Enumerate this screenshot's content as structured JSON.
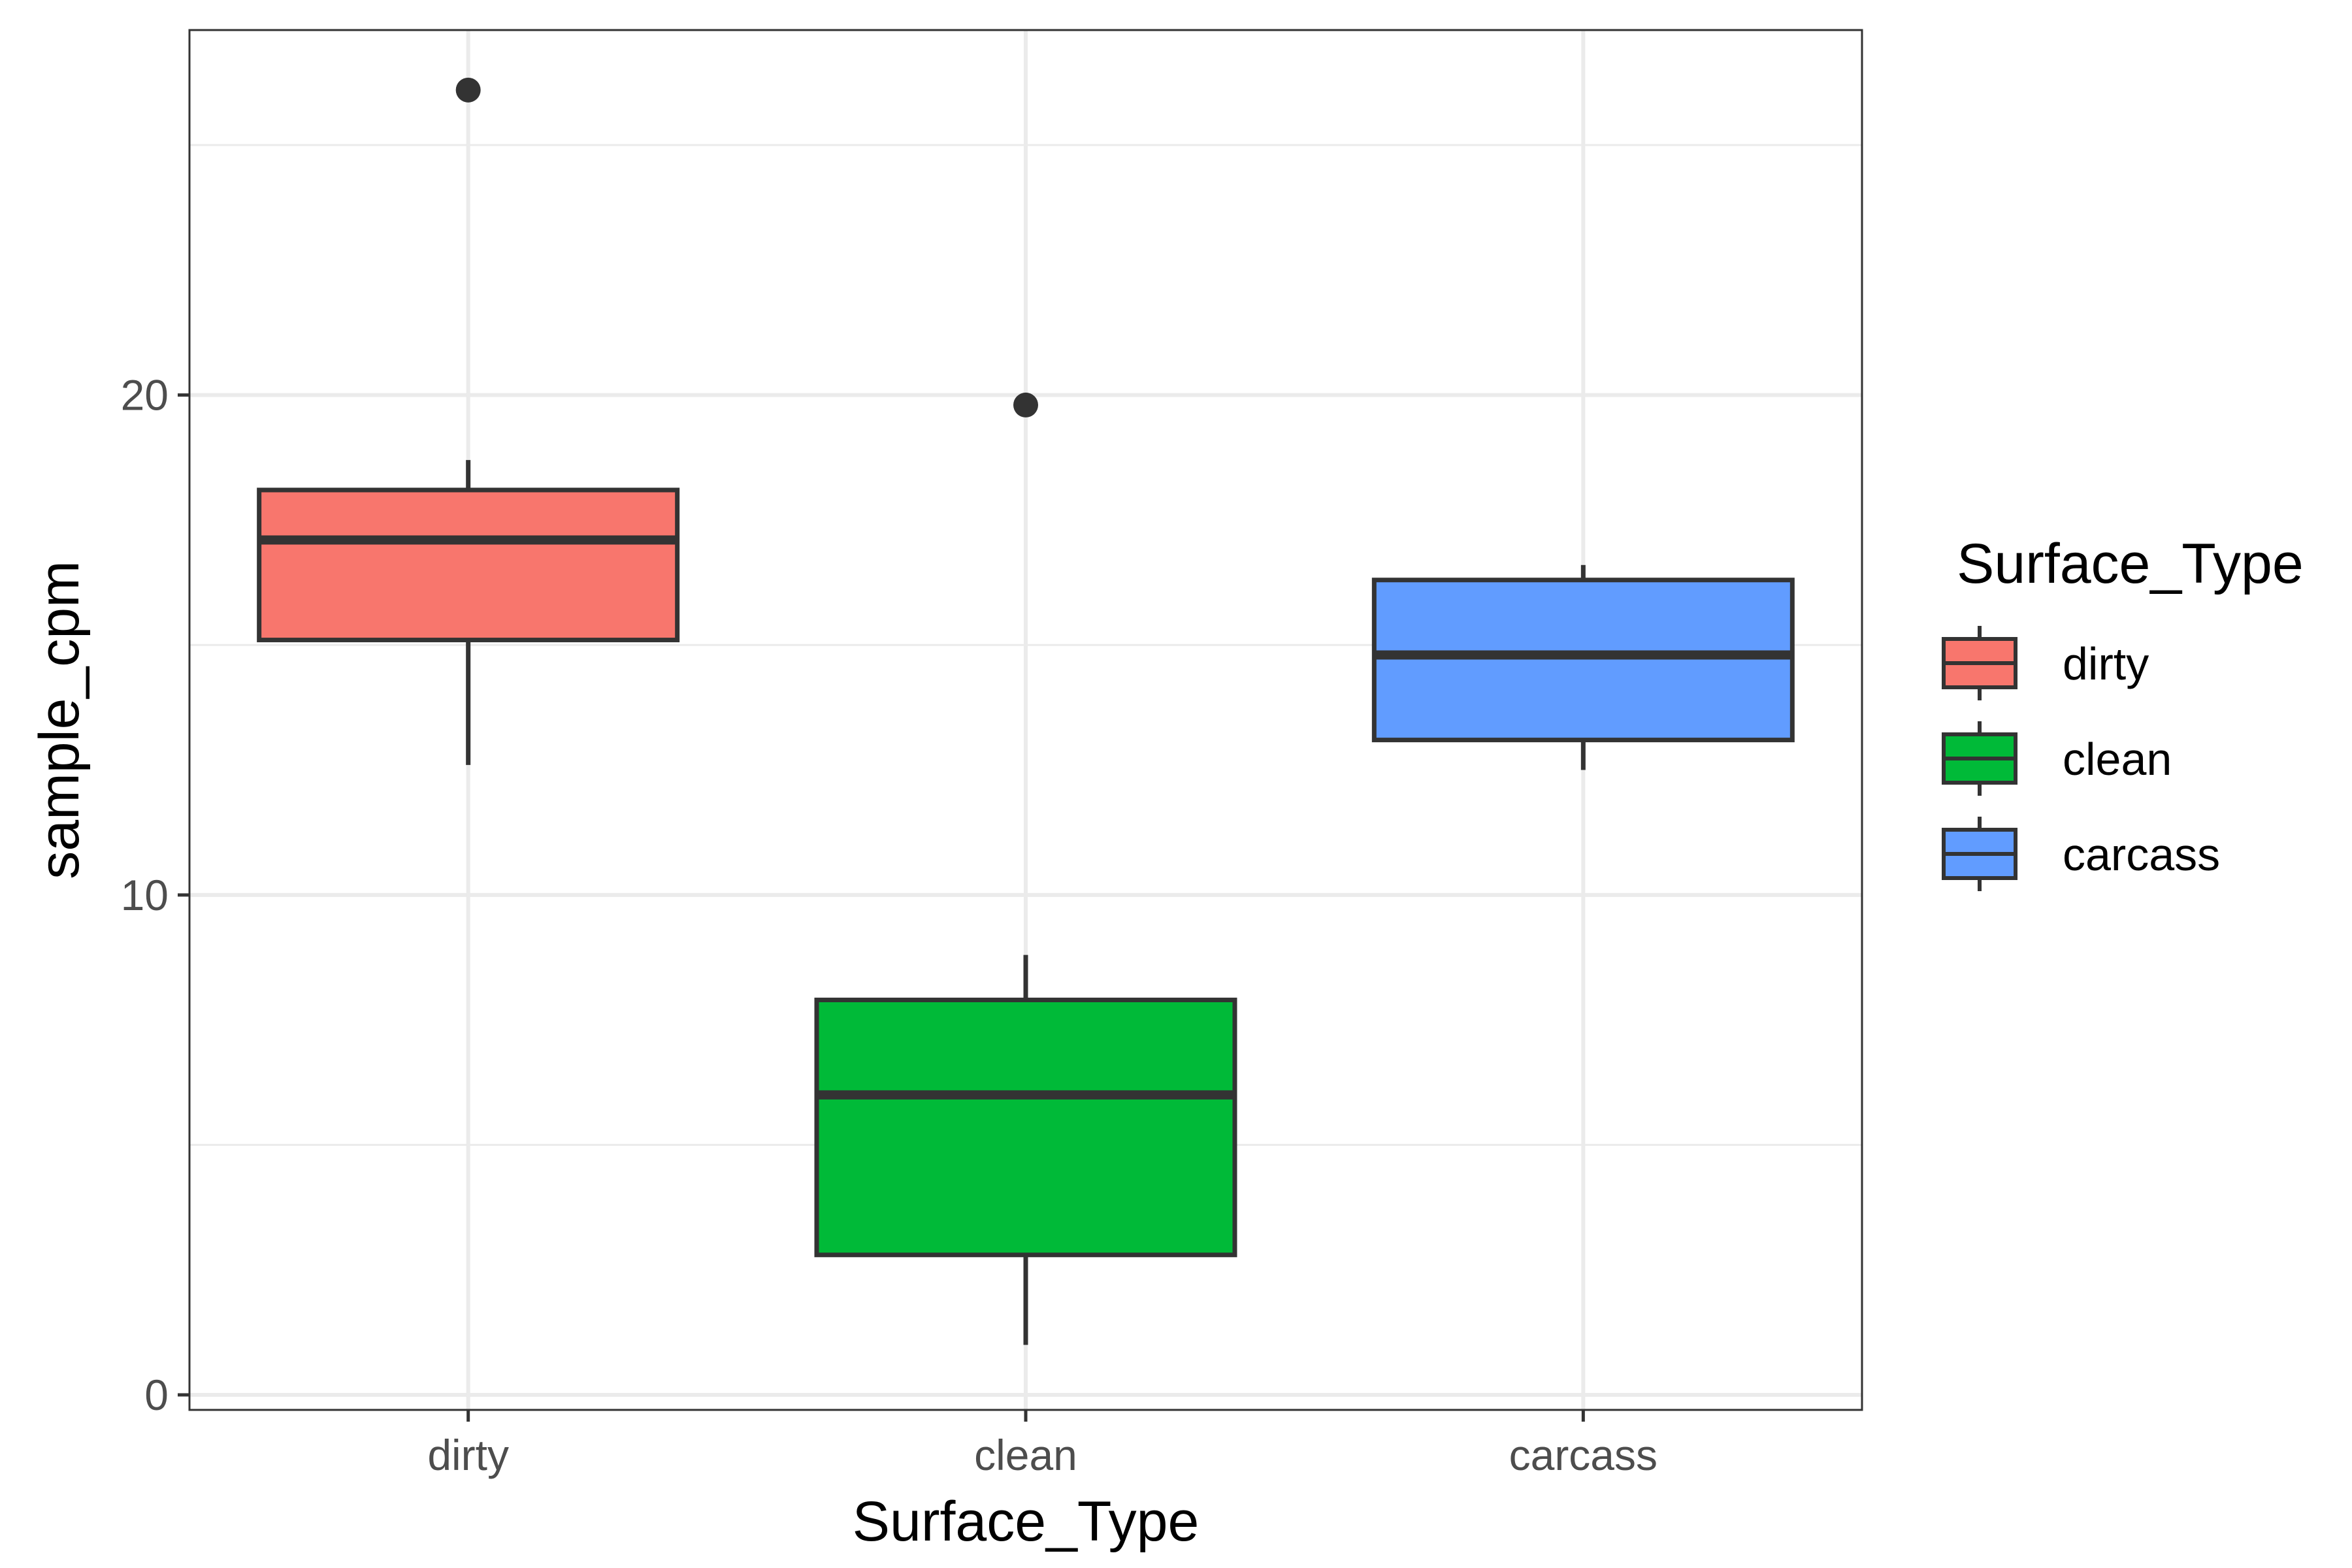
{
  "chart_data": {
    "type": "box",
    "xlabel": "Surface_Type",
    "ylabel": "sample_cpm",
    "categories": [
      "dirty",
      "clean",
      "carcass"
    ],
    "ylim": [
      -0.3,
      27.3
    ],
    "yticks": [
      0,
      10,
      20
    ],
    "grid": true,
    "boxes": [
      {
        "category": "dirty",
        "lower_whisker": 12.6,
        "q1": 15.1,
        "median": 17.1,
        "q3": 18.1,
        "upper_whisker": 18.7,
        "outliers": [
          26.1
        ],
        "color": "#F8766D"
      },
      {
        "category": "clean",
        "lower_whisker": 1.0,
        "q1": 2.8,
        "median": 6.0,
        "q3": 7.9,
        "upper_whisker": 8.8,
        "outliers": [
          19.8
        ],
        "color": "#00BA38"
      },
      {
        "category": "carcass",
        "lower_whisker": 12.5,
        "q1": 13.1,
        "median": 14.8,
        "q3": 16.3,
        "upper_whisker": 16.6,
        "outliers": [],
        "color": "#619CFF"
      }
    ],
    "legend": {
      "title": "Surface_Type",
      "position": "right",
      "items": [
        {
          "label": "dirty",
          "color": "#F8766D"
        },
        {
          "label": "clean",
          "color": "#00BA38"
        },
        {
          "label": "carcass",
          "color": "#619CFF"
        }
      ]
    }
  }
}
